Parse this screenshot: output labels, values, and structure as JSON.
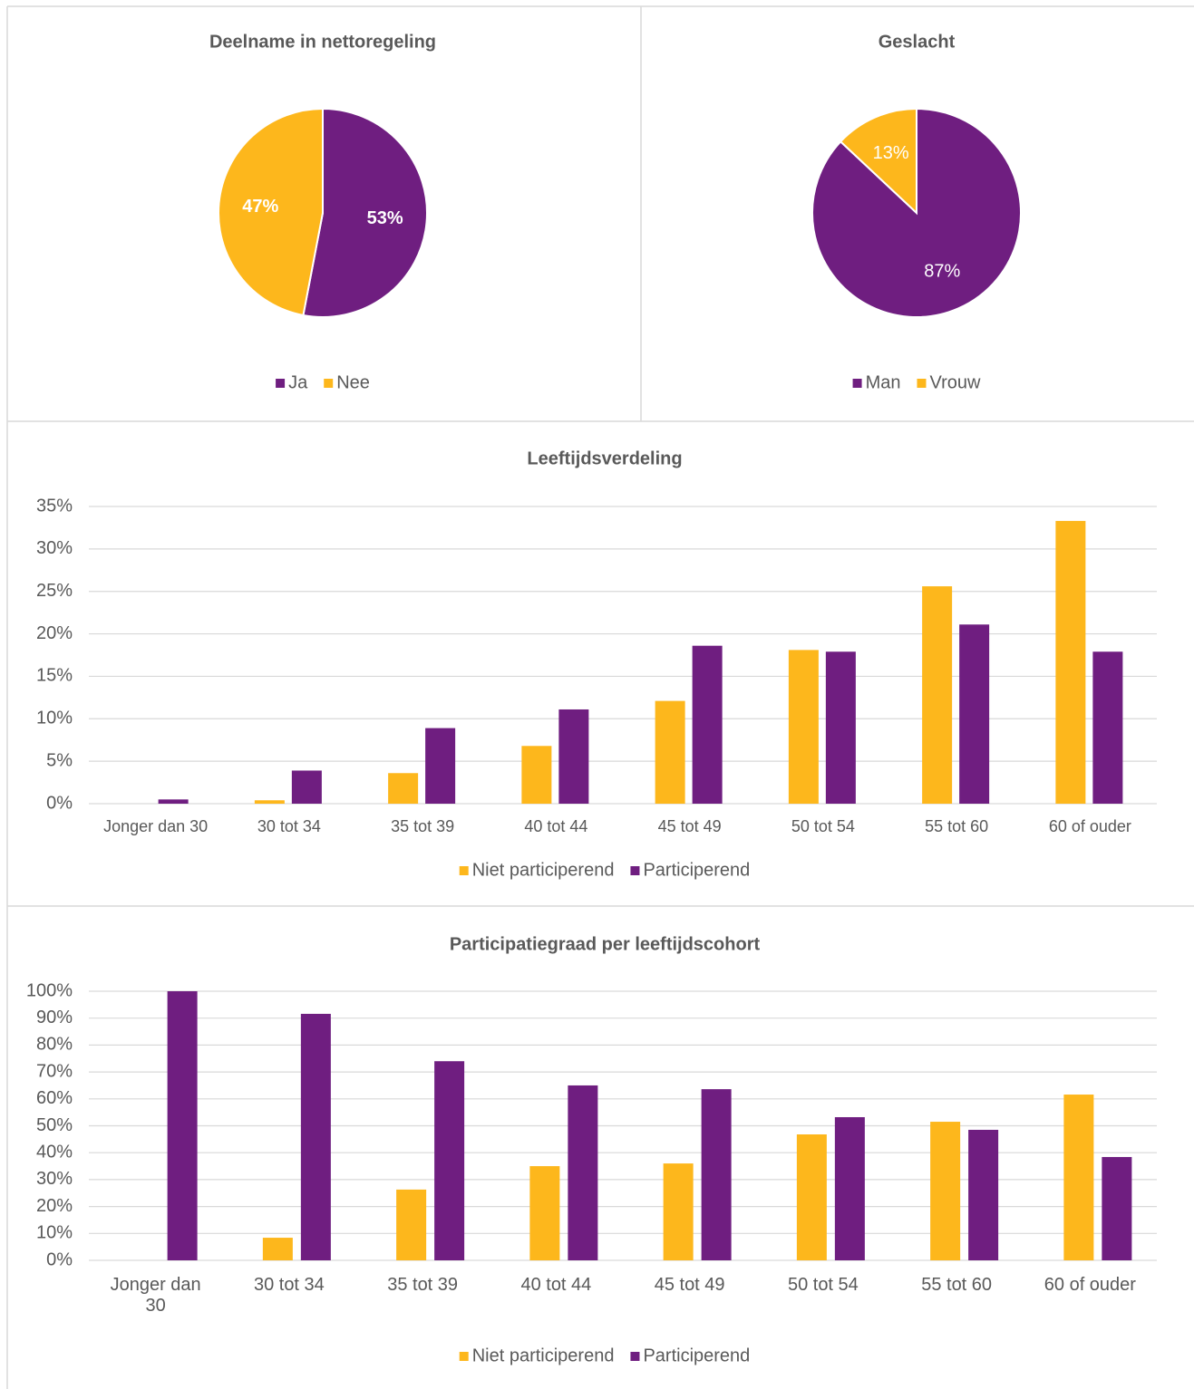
{
  "chart_data": [
    {
      "type": "pie",
      "title": "Deelname in nettoregeling",
      "categories": [
        "Ja",
        "Nee"
      ],
      "values": [
        53,
        47
      ],
      "value_labels": [
        "53%",
        "47%"
      ],
      "colors": [
        "#6f1e80",
        "#fdb71c"
      ]
    },
    {
      "type": "pie",
      "title": "Geslacht",
      "categories": [
        "Man",
        "Vrouw"
      ],
      "values": [
        87,
        13
      ],
      "value_labels": [
        "87%",
        "13%"
      ],
      "colors": [
        "#6f1e80",
        "#fdb71c"
      ]
    },
    {
      "type": "bar",
      "title": "Leeftijdsverdeling",
      "categories": [
        "Jonger dan 30",
        "30 tot 34",
        "35 tot 39",
        "40 tot 44",
        "45 tot 49",
        "50 tot 54",
        "55 tot 60",
        "60 of ouder"
      ],
      "series": [
        {
          "name": "Niet participerend",
          "color": "#fdb71c",
          "values": [
            0,
            0.4,
            3.6,
            6.8,
            12.1,
            18.1,
            25.6,
            33.3
          ]
        },
        {
          "name": "Participerend",
          "color": "#6f1e80",
          "values": [
            0.5,
            3.9,
            8.9,
            11.1,
            18.6,
            17.9,
            21.1,
            17.9
          ]
        }
      ],
      "ylim": [
        0,
        35
      ],
      "yticks": [
        {
          "value": 0,
          "label": "0%"
        },
        {
          "value": 5,
          "label": "5%"
        },
        {
          "value": 10,
          "label": "10%"
        },
        {
          "value": 15,
          "label": "15%"
        },
        {
          "value": 20,
          "label": "20%"
        },
        {
          "value": 25,
          "label": "25%"
        },
        {
          "value": 30,
          "label": "30%"
        },
        {
          "value": 35,
          "label": "35%"
        }
      ],
      "grid": true,
      "legend": "bottom"
    },
    {
      "type": "bar",
      "title": "Participatiegraad per leeftijdscohort",
      "categories": [
        "Jonger dan 30",
        "30 tot 34",
        "35 tot 39",
        "40 tot 44",
        "45 tot 49",
        "50 tot 54",
        "55 tot 60",
        "60 of ouder"
      ],
      "series": [
        {
          "name": "Niet participerend",
          "color": "#fdb71c",
          "values": [
            0,
            8.4,
            26.3,
            35,
            36,
            46.8,
            51.5,
            61.6
          ]
        },
        {
          "name": "Participerend",
          "color": "#6f1e80",
          "values": [
            100,
            91.6,
            74,
            65,
            63.6,
            53.2,
            48.5,
            38.4
          ]
        }
      ],
      "ylim": [
        0,
        100
      ],
      "yticks": [
        {
          "value": 0,
          "label": "0%"
        },
        {
          "value": 10,
          "label": "10%"
        },
        {
          "value": 20,
          "label": "20%"
        },
        {
          "value": 30,
          "label": "30%"
        },
        {
          "value": 40,
          "label": "40%"
        },
        {
          "value": 50,
          "label": "50%"
        },
        {
          "value": 60,
          "label": "60%"
        },
        {
          "value": 70,
          "label": "70%"
        },
        {
          "value": 80,
          "label": "80%"
        },
        {
          "value": 90,
          "label": "90%"
        },
        {
          "value": 100,
          "label": "100%"
        }
      ],
      "grid": true,
      "legend": "bottom"
    }
  ]
}
